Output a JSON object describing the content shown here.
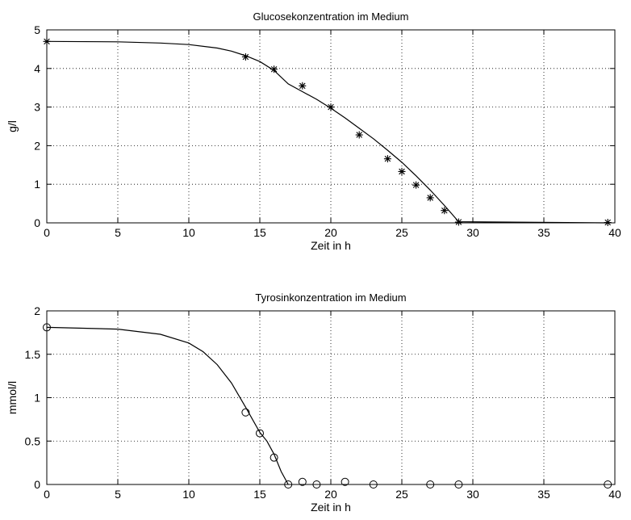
{
  "chart_data": [
    {
      "type": "line",
      "title": "Glucosekonzentration im Medium",
      "xlabel": "Zeit in h",
      "ylabel": "g/l",
      "xlim": [
        0,
        40
      ],
      "ylim": [
        0,
        5
      ],
      "xticks": [
        0,
        5,
        10,
        15,
        20,
        25,
        30,
        35,
        40
      ],
      "yticks": [
        0,
        1,
        2,
        3,
        4,
        5
      ],
      "ytick_labels": [
        "0",
        "1",
        "2",
        "3",
        "4",
        "5"
      ],
      "grid": true,
      "series": [
        {
          "kind": "line",
          "x": [
            0,
            5,
            8,
            10,
            12,
            13,
            14,
            15,
            16,
            17,
            18,
            19,
            20,
            21,
            22,
            23,
            24,
            25,
            26,
            27,
            28,
            28.5,
            29,
            39.5
          ],
          "y": [
            4.7,
            4.69,
            4.66,
            4.62,
            4.53,
            4.45,
            4.33,
            4.18,
            3.95,
            3.6,
            3.4,
            3.2,
            2.97,
            2.72,
            2.45,
            2.18,
            1.88,
            1.57,
            1.22,
            0.85,
            0.45,
            0.24,
            0.03,
            0.0
          ]
        },
        {
          "kind": "marker",
          "marker": "asterisk",
          "x": [
            0,
            14,
            16,
            18,
            20,
            22,
            24,
            25,
            26,
            27,
            28,
            29,
            39.5
          ],
          "y": [
            4.7,
            4.3,
            3.98,
            3.55,
            3.0,
            2.28,
            1.66,
            1.33,
            0.98,
            0.65,
            0.32,
            0.02,
            0.01
          ]
        }
      ]
    },
    {
      "type": "line",
      "title": "Tyrosinkonzentration im Medium",
      "xlabel": "Zeit in h",
      "ylabel": "mmol/l",
      "xlim": [
        0,
        40
      ],
      "ylim": [
        0,
        2
      ],
      "xticks": [
        0,
        5,
        10,
        15,
        20,
        25,
        30,
        35,
        40
      ],
      "yticks": [
        0,
        0.5,
        1,
        1.5,
        2
      ],
      "ytick_labels": [
        "0",
        "0.5",
        "1",
        "1.5",
        "2"
      ],
      "grid": true,
      "series": [
        {
          "kind": "line",
          "x": [
            0,
            5,
            8,
            10,
            11,
            12,
            13,
            14,
            15,
            15.5,
            16,
            16.5,
            17
          ],
          "y": [
            1.81,
            1.79,
            1.73,
            1.63,
            1.53,
            1.38,
            1.17,
            0.89,
            0.6,
            0.5,
            0.35,
            0.15,
            0.0
          ]
        },
        {
          "kind": "marker",
          "marker": "circle",
          "x": [
            0,
            14,
            15,
            16,
            17,
            18,
            19,
            21,
            23,
            27,
            29,
            39.5
          ],
          "y": [
            1.81,
            0.83,
            0.59,
            0.31,
            0.0,
            0.03,
            0.0,
            0.03,
            0.0,
            0.0,
            0.0,
            0.0
          ]
        }
      ]
    }
  ]
}
